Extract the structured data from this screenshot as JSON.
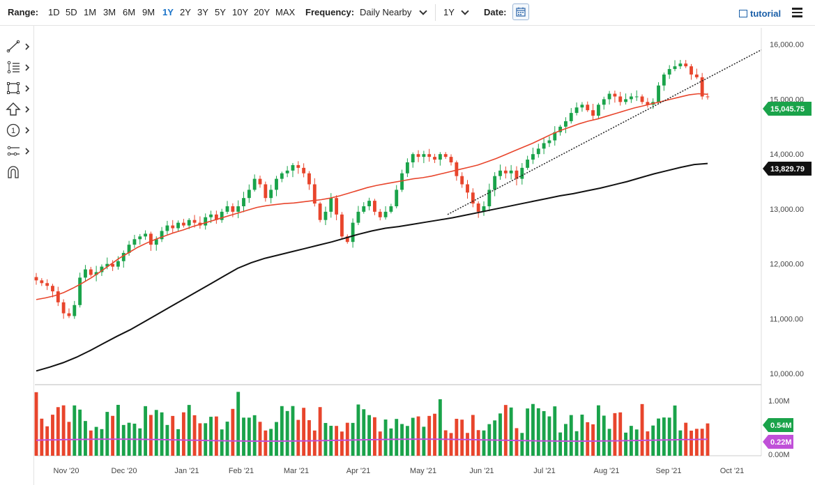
{
  "toolbar": {
    "range_label": "Range:",
    "ranges": [
      "1D",
      "5D",
      "1M",
      "3M",
      "6M",
      "9M",
      "1Y",
      "2Y",
      "3Y",
      "5Y",
      "10Y",
      "20Y",
      "MAX"
    ],
    "active_range": "1Y",
    "frequency_label": "Frequency:",
    "frequency_value": "Daily Nearby",
    "period_value": "1Y",
    "date_label": "Date:",
    "tutorial_label": "tutorial"
  },
  "sidebar": {
    "tools": [
      "line-tool-icon",
      "fib-tool-icon",
      "shape-tool-icon",
      "arrow-tool-icon",
      "annotation-tool-icon",
      "measure-tool-icon",
      "magnet-icon"
    ]
  },
  "chart_data": {
    "type": "candlestick",
    "x_labels": [
      "Nov '20",
      "Dec '20",
      "Jan '21",
      "Feb '21",
      "Mar '21",
      "Apr '21",
      "May '21",
      "Jun '21",
      "Jul '21",
      "Aug '21",
      "Sep '21",
      "Oct '21"
    ],
    "price_axis": {
      "ticks": [
        "16,000.00",
        "15,000.00",
        "14,000.00",
        "13,000.00",
        "12,000.00",
        "11,000.00",
        "10,000.00"
      ],
      "ylim": [
        9800,
        16300
      ]
    },
    "volume_axis": {
      "ticks": [
        "1.00M",
        "0.50M",
        "0.00M"
      ],
      "ylim": [
        0,
        1.0
      ]
    },
    "last_price": "15,045.75",
    "ma200_value": "13,829.79",
    "volume_last": "0.54M",
    "volume_avg_last": "0.22M",
    "colors": {
      "up": "#1aa34a",
      "down": "#e8452c",
      "ma50": "#e8452c",
      "ma200": "#111111",
      "volume_avg": "#c050d8",
      "last_price_badge": "#1aa34a",
      "avg_badge": "#c050d8"
    },
    "series": {
      "closes": [
        11700,
        11650,
        11600,
        11500,
        11300,
        11100,
        11050,
        11250,
        11750,
        11900,
        11800,
        11850,
        11950,
        12000,
        11950,
        12050,
        12200,
        12350,
        12450,
        12500,
        12550,
        12350,
        12450,
        12600,
        12700,
        12650,
        12750,
        12700,
        12800,
        12750,
        12700,
        12850,
        12900,
        12800,
        12950,
        13050,
        12950,
        13050,
        13200,
        13350,
        13550,
        13450,
        13200,
        13350,
        13550,
        13650,
        13700,
        13800,
        13750,
        13650,
        13450,
        13100,
        12800,
        12950,
        13200,
        12900,
        12500,
        12400,
        12750,
        12950,
        13050,
        13150,
        12950,
        12850,
        12950,
        13050,
        13350,
        13650,
        13850,
        14000,
        13950,
        14000,
        13950,
        13900,
        14000,
        13950,
        13850,
        13600,
        13450,
        13300,
        13100,
        12950,
        13050,
        13350,
        13600,
        13700,
        13650,
        13700,
        13550,
        13750,
        13900,
        14000,
        14100,
        14200,
        14250,
        14400,
        14500,
        14600,
        14750,
        14850,
        14900,
        14800,
        14700,
        14900,
        15000,
        15100,
        15050,
        14950,
        15000,
        15050,
        15050,
        14950,
        14900,
        14950,
        15250,
        15450,
        15550,
        15600,
        15650,
        15600,
        15450,
        15400,
        15050,
        15045
      ],
      "ma50": [
        11350,
        11380,
        11420,
        11480,
        11560,
        11650,
        11750,
        11860,
        11980,
        12100,
        12200,
        12300,
        12380,
        12450,
        12510,
        12570,
        12620,
        12680,
        12730,
        12780,
        12830,
        12880,
        12930,
        12980,
        13030,
        13060,
        13080,
        13100,
        13110,
        13130,
        13150,
        13170,
        13200,
        13240,
        13290,
        13340,
        13390,
        13430,
        13460,
        13490,
        13520,
        13550,
        13570,
        13600,
        13640,
        13680,
        13720,
        13760,
        13800,
        13860,
        13920,
        13990,
        14060,
        14130,
        14200,
        14280,
        14360,
        14430,
        14490,
        14550,
        14600,
        14640,
        14690,
        14740,
        14790,
        14840,
        14880,
        14920,
        14960,
        15000,
        15040,
        15080,
        15100,
        15090
      ],
      "ma200": [
        10050,
        10120,
        10200,
        10300,
        10420,
        10550,
        10680,
        10800,
        10940,
        11080,
        11220,
        11360,
        11500,
        11640,
        11780,
        11920,
        12020,
        12100,
        12160,
        12220,
        12280,
        12340,
        12400,
        12470,
        12540,
        12600,
        12650,
        12680,
        12720,
        12760,
        12800,
        12840,
        12890,
        12940,
        12990,
        13040,
        13090,
        13140,
        13190,
        13240,
        13280,
        13330,
        13380,
        13440,
        13500,
        13570,
        13640,
        13700,
        13760,
        13810,
        13830
      ],
      "trendline": {
        "from": [
          13100,
          12900
        ],
        "to": [
          15900,
          15900
        ],
        "note": ""
      }
    }
  }
}
